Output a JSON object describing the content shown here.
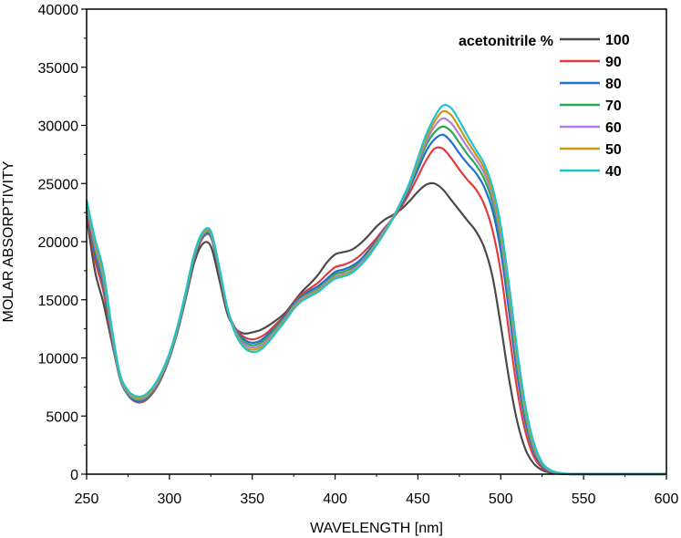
{
  "chart_data": {
    "type": "line",
    "title": "",
    "xlabel": "WAVELENGTH [nm]",
    "ylabel": "MOLAR ABSORPTIVITY",
    "xlim": [
      250,
      600
    ],
    "ylim": [
      0,
      40000
    ],
    "xticks": [
      250,
      300,
      350,
      400,
      450,
      500,
      550,
      600
    ],
    "yticks": [
      0,
      5000,
      10000,
      15000,
      20000,
      25000,
      30000,
      35000,
      40000
    ],
    "xtick_labels": [
      "250",
      "300",
      "350",
      "400",
      "450",
      "500",
      "550",
      "600"
    ],
    "ytick_labels": [
      "0",
      "5000",
      "10000",
      "15000",
      "20000",
      "25000",
      "30000",
      "35000",
      "40000"
    ],
    "legend_title": "acetonitrile %",
    "legend_position": "top-right",
    "x": [
      250,
      255,
      260,
      265,
      270,
      275,
      280,
      285,
      290,
      295,
      300,
      305,
      310,
      315,
      320,
      325,
      330,
      335,
      340,
      345,
      350,
      355,
      360,
      365,
      370,
      375,
      380,
      385,
      390,
      395,
      400,
      405,
      410,
      415,
      420,
      425,
      430,
      435,
      440,
      445,
      450,
      455,
      460,
      465,
      470,
      475,
      480,
      485,
      490,
      495,
      500,
      505,
      510,
      515,
      520,
      525,
      530,
      535,
      540,
      545,
      550,
      560,
      570,
      580,
      590,
      600
    ],
    "series": [
      {
        "name": "100",
        "color": "#4a4a4a",
        "values": [
          22200,
          17500,
          14800,
          11500,
          8400,
          6900,
          6300,
          6300,
          7000,
          8200,
          10000,
          12300,
          15200,
          18200,
          19800,
          19600,
          16800,
          13800,
          12500,
          12100,
          12200,
          12400,
          12800,
          13300,
          13900,
          14800,
          15700,
          16400,
          17200,
          18200,
          18900,
          19100,
          19300,
          19800,
          20500,
          21300,
          21900,
          22300,
          22800,
          23500,
          24300,
          24900,
          25000,
          24500,
          23600,
          22700,
          21800,
          20900,
          19500,
          17000,
          12800,
          8200,
          4500,
          2100,
          900,
          350,
          120,
          40,
          10,
          0,
          0,
          0,
          0,
          0,
          0,
          0
        ]
      },
      {
        "name": "90",
        "color": "#e23b3b",
        "values": [
          22700,
          18500,
          15800,
          11800,
          8300,
          6800,
          6200,
          6300,
          7000,
          8200,
          10000,
          12400,
          15400,
          18500,
          20300,
          20400,
          17400,
          14100,
          12500,
          11800,
          11600,
          11800,
          12300,
          13000,
          13700,
          14700,
          15500,
          16000,
          16500,
          17200,
          17800,
          18000,
          18300,
          18800,
          19500,
          20300,
          21200,
          22000,
          23000,
          24200,
          25600,
          27000,
          28000,
          28000,
          27200,
          26200,
          25300,
          24500,
          23200,
          21000,
          17400,
          12200,
          7200,
          3600,
          1500,
          550,
          200,
          60,
          15,
          0,
          0,
          0,
          0,
          0,
          0,
          0
        ]
      },
      {
        "name": "80",
        "color": "#1f6fd1",
        "values": [
          23000,
          19000,
          16300,
          12000,
          8300,
          6800,
          6300,
          6400,
          7100,
          8300,
          10000,
          12400,
          15400,
          18600,
          20400,
          20500,
          17500,
          14200,
          12400,
          11600,
          11300,
          11500,
          12100,
          12800,
          13600,
          14600,
          15300,
          15800,
          16200,
          16800,
          17400,
          17600,
          17900,
          18400,
          19200,
          20100,
          21100,
          22100,
          23200,
          24600,
          26200,
          27800,
          28800,
          29200,
          28600,
          27600,
          26700,
          25900,
          24700,
          22700,
          19200,
          14000,
          8500,
          4400,
          1900,
          700,
          250,
          80,
          20,
          0,
          0,
          0,
          0,
          0,
          0,
          0
        ]
      },
      {
        "name": "70",
        "color": "#2ea84a",
        "values": [
          23200,
          19400,
          16700,
          12200,
          8400,
          6900,
          6400,
          6500,
          7200,
          8400,
          10100,
          12500,
          15500,
          18700,
          20500,
          20600,
          17600,
          14200,
          12300,
          11400,
          11100,
          11300,
          11900,
          12700,
          13500,
          14500,
          15200,
          15600,
          16000,
          16600,
          17200,
          17400,
          17700,
          18200,
          19000,
          20000,
          21000,
          22100,
          23300,
          24800,
          26600,
          28300,
          29400,
          29900,
          29500,
          28500,
          27500,
          26600,
          25400,
          23400,
          20000,
          14800,
          9200,
          4800,
          2100,
          800,
          280,
          90,
          20,
          0,
          0,
          0,
          0,
          0,
          0,
          0
        ]
      },
      {
        "name": "60",
        "color": "#b07ee0",
        "values": [
          23300,
          19700,
          17000,
          12400,
          8500,
          7000,
          6500,
          6600,
          7300,
          8500,
          10200,
          12600,
          15600,
          18800,
          20600,
          20700,
          17700,
          14200,
          12200,
          11200,
          10900,
          11100,
          11700,
          12500,
          13400,
          14400,
          15100,
          15500,
          15900,
          16500,
          17000,
          17200,
          17500,
          18100,
          18900,
          19900,
          21000,
          22100,
          23400,
          24900,
          26800,
          28600,
          29900,
          30600,
          30200,
          29200,
          28100,
          27100,
          25900,
          23900,
          20500,
          15400,
          9700,
          5200,
          2300,
          850,
          300,
          100,
          25,
          0,
          0,
          0,
          0,
          0,
          0,
          0
        ]
      },
      {
        "name": "50",
        "color": "#c89a12",
        "values": [
          23400,
          20000,
          17300,
          12600,
          8600,
          7100,
          6600,
          6700,
          7400,
          8600,
          10300,
          12700,
          15700,
          18900,
          20700,
          20800,
          17800,
          14200,
          12100,
          11000,
          10700,
          10900,
          11500,
          12400,
          13300,
          14300,
          15000,
          15400,
          15800,
          16400,
          16900,
          17100,
          17400,
          18000,
          18800,
          19800,
          20900,
          22100,
          23500,
          25000,
          27000,
          28900,
          30300,
          31200,
          30900,
          29800,
          28600,
          27500,
          26300,
          24300,
          21000,
          15900,
          10200,
          5500,
          2500,
          950,
          330,
          110,
          25,
          0,
          0,
          0,
          0,
          0,
          0,
          0
        ]
      },
      {
        "name": "40",
        "color": "#1ec4cc",
        "values": [
          23600,
          20300,
          17600,
          12800,
          8700,
          7200,
          6700,
          6800,
          7500,
          8700,
          10400,
          12800,
          15800,
          19000,
          20800,
          20900,
          17900,
          14300,
          12000,
          10900,
          10500,
          10700,
          11400,
          12300,
          13200,
          14200,
          14900,
          15300,
          15700,
          16300,
          16800,
          17000,
          17300,
          17900,
          18700,
          19700,
          20800,
          22000,
          23500,
          25100,
          27200,
          29200,
          30700,
          31700,
          31500,
          30400,
          29100,
          27900,
          26700,
          24700,
          21400,
          16300,
          10600,
          5800,
          2700,
          1000,
          360,
          120,
          30,
          0,
          0,
          0,
          0,
          0,
          0,
          0
        ]
      }
    ]
  }
}
